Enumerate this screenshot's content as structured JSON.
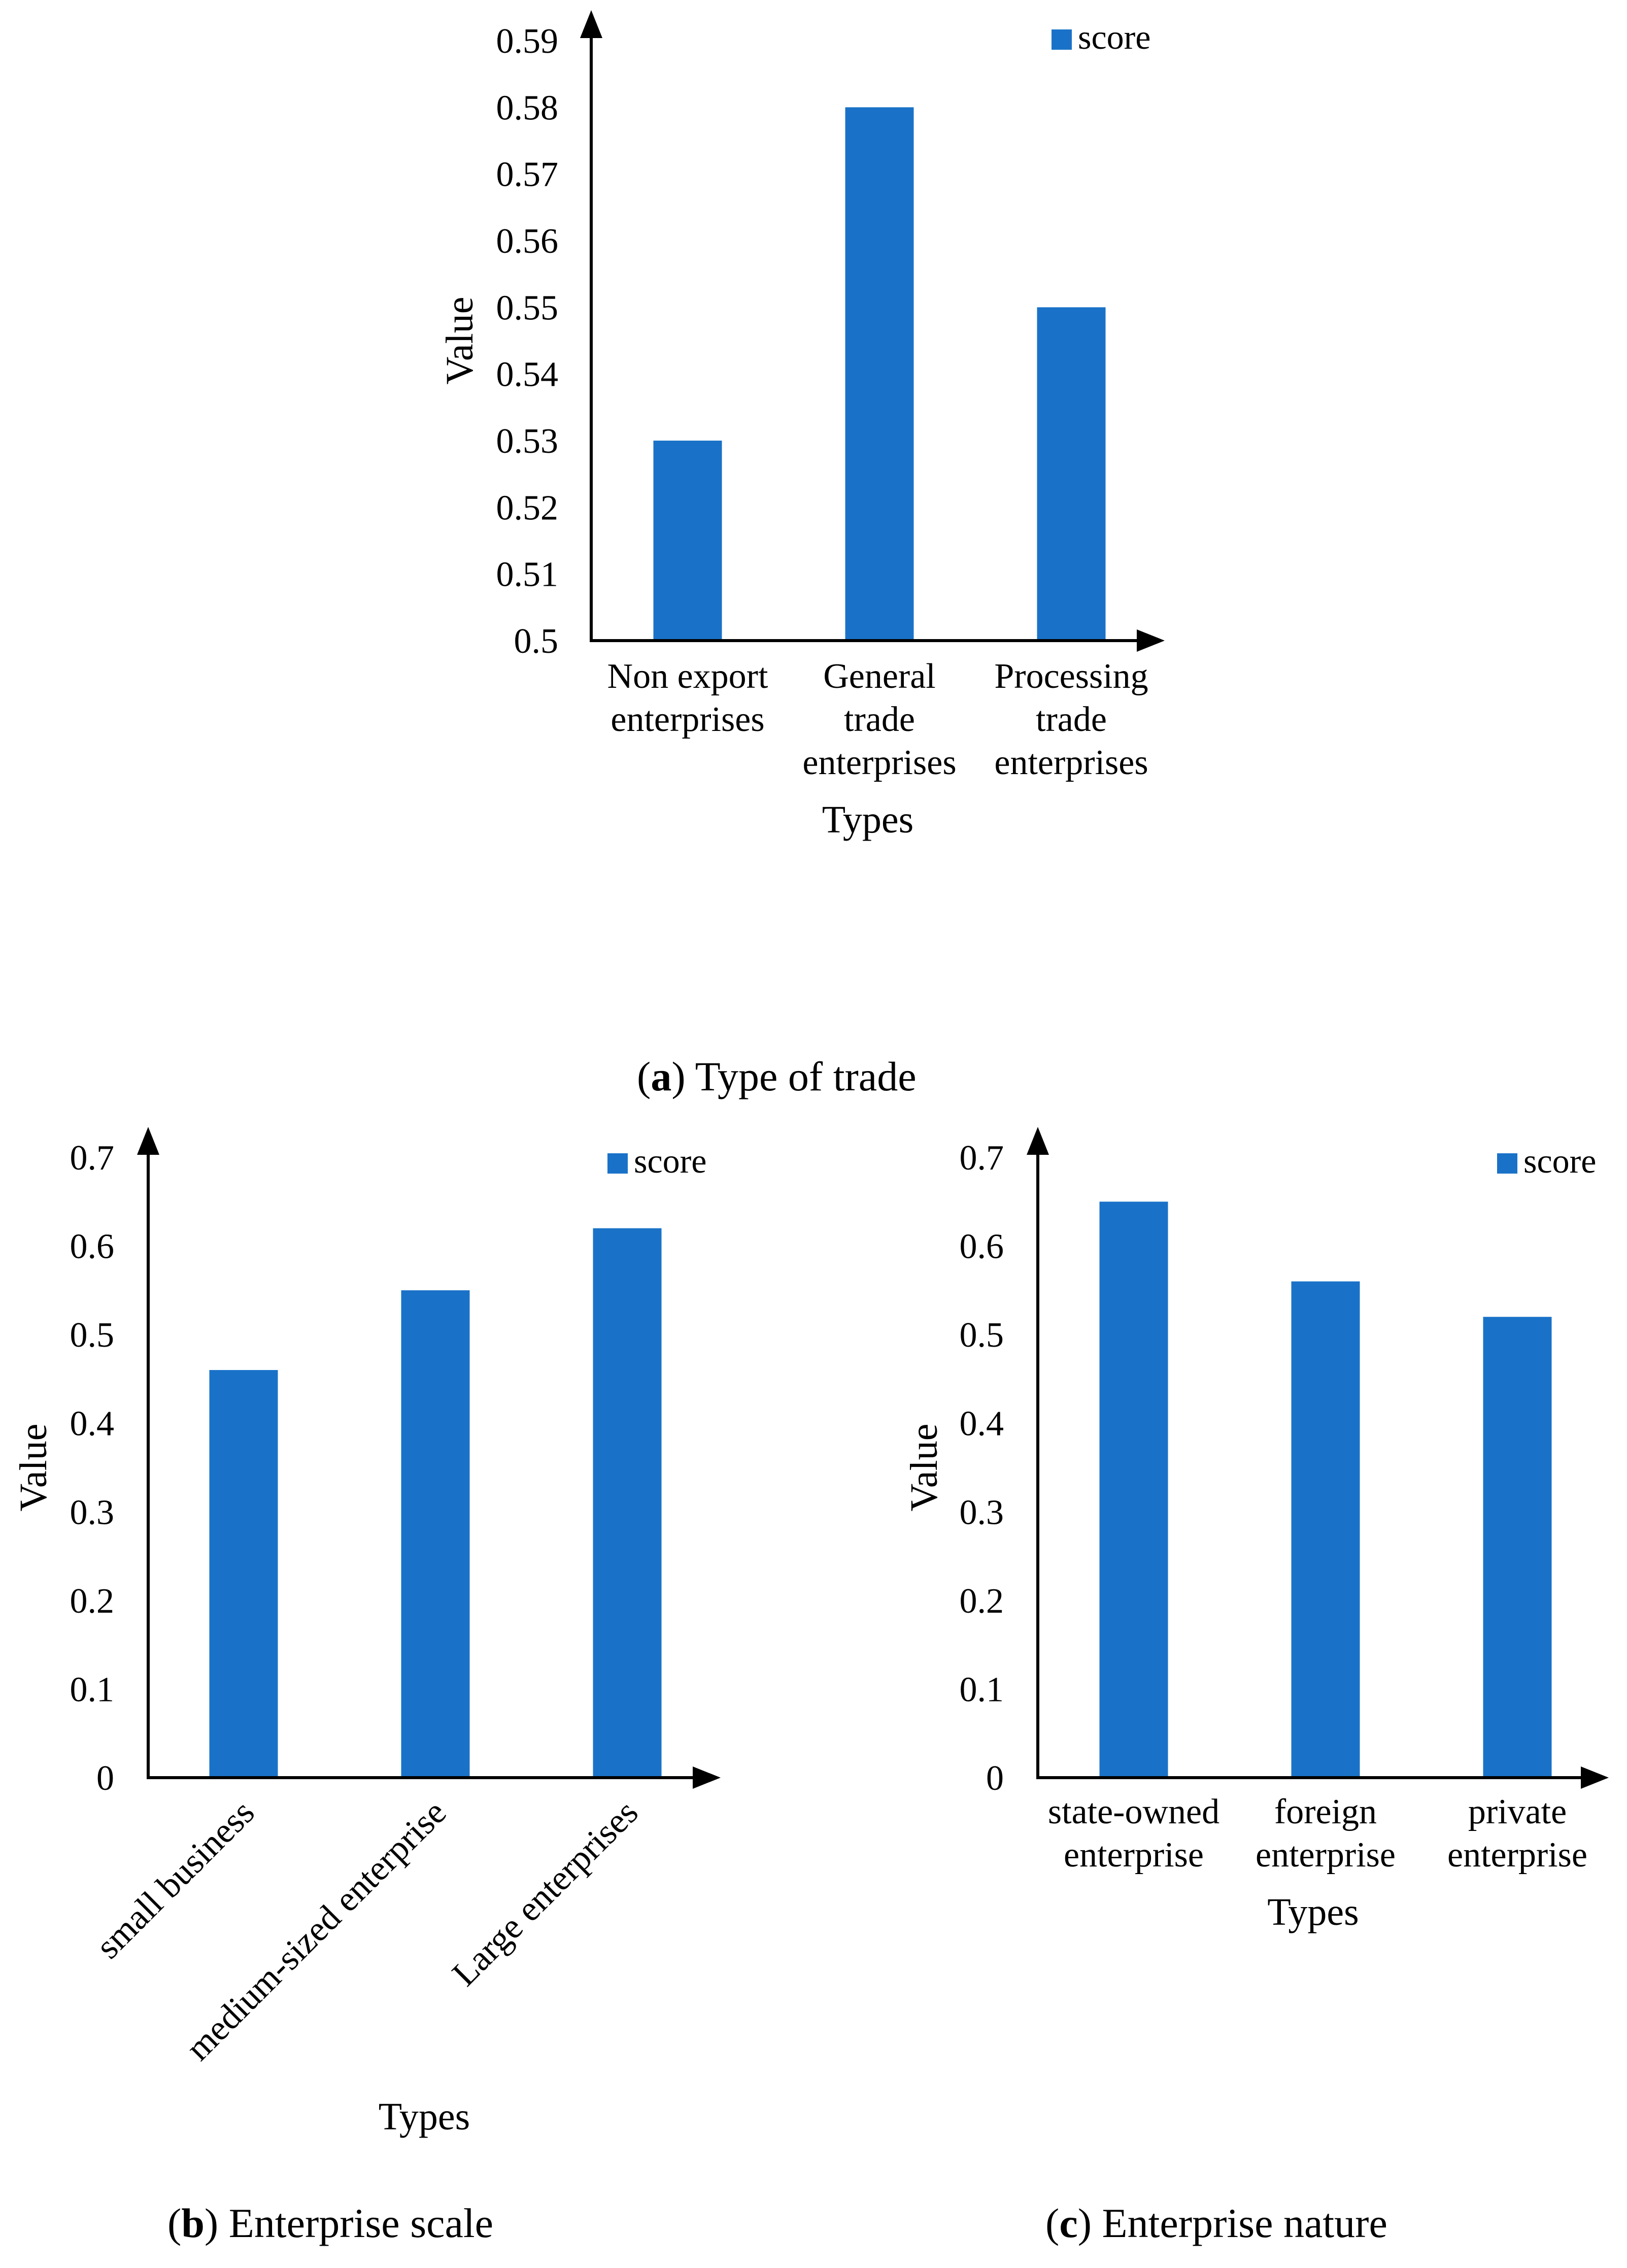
{
  "colors": {
    "bar": "#1a72c8",
    "axis": "#000000"
  },
  "chart_data": [
    {
      "type": "bar",
      "panel": "a",
      "caption_letter": "a",
      "caption_text": ") Type of trade",
      "caption_open": "(",
      "legend": "score",
      "xlabel": "Types",
      "ylabel": "Value",
      "ylim": [
        0.5,
        0.59
      ],
      "yticks": [
        "0.5",
        "0.51",
        "0.52",
        "0.53",
        "0.54",
        "0.55",
        "0.56",
        "0.57",
        "0.58",
        "0.59"
      ],
      "categories": [
        [
          "Non export",
          "enterprises"
        ],
        [
          "General",
          "trade",
          "enterprises"
        ],
        [
          "Processing",
          "trade",
          "enterprises"
        ]
      ],
      "values": [
        0.53,
        0.58,
        0.55
      ]
    },
    {
      "type": "bar",
      "panel": "b",
      "caption_letter": "b",
      "caption_text": ") Enterprise scale",
      "caption_open": "(",
      "legend": "score",
      "xlabel": "Types",
      "ylabel": "Value",
      "ylim": [
        0,
        0.7
      ],
      "yticks": [
        "0",
        "0.1",
        "0.2",
        "0.3",
        "0.4",
        "0.5",
        "0.6",
        "0.7"
      ],
      "categories": [
        [
          "small business"
        ],
        [
          "medium-sized enterprise"
        ],
        [
          "Large enterprises"
        ]
      ],
      "values": [
        0.46,
        0.55,
        0.62
      ]
    },
    {
      "type": "bar",
      "panel": "c",
      "caption_letter": "c",
      "caption_text": ") Enterprise nature",
      "caption_open": "(",
      "legend": "score",
      "xlabel": "Types",
      "ylabel": "Value",
      "ylim": [
        0,
        0.7
      ],
      "yticks": [
        "0",
        "0.1",
        "0.2",
        "0.3",
        "0.4",
        "0.5",
        "0.6",
        "0.7"
      ],
      "categories": [
        [
          "state-owned",
          "enterprise"
        ],
        [
          "foreign",
          "enterprise"
        ],
        [
          "private",
          "enterprise"
        ]
      ],
      "values": [
        0.65,
        0.56,
        0.52
      ]
    }
  ]
}
